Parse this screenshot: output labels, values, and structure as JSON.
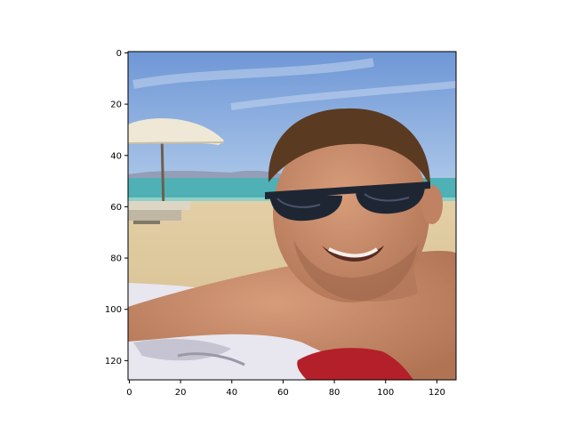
{
  "chart_data": {
    "type": "image",
    "image_extent": {
      "x": [
        -0.5,
        127.5
      ],
      "y": [
        127.5,
        -0.5
      ]
    },
    "x_axis": {
      "ticks": [
        0,
        20,
        40,
        60,
        80,
        100,
        120
      ],
      "labels": [
        "0",
        "20",
        "40",
        "60",
        "80",
        "100",
        "120"
      ]
    },
    "y_axis": {
      "ticks": [
        0,
        20,
        40,
        60,
        80,
        100,
        120
      ],
      "labels": [
        "0",
        "20",
        "40",
        "60",
        "80",
        "100",
        "120"
      ],
      "inverted": true
    },
    "grid": false,
    "title": "",
    "xlabel": "",
    "ylabel": "",
    "scene": {
      "sky_top": "#6f97d6",
      "sky_bottom": "#a9c5e8",
      "sea": "#4fb1b5",
      "sand": "#d9c49a",
      "skin": "#c58b6a",
      "hair": "#5b3a22",
      "sunglasses": "#1f2633",
      "towel": "#e8e6ef",
      "red_cloth": "#b3202a",
      "umbrella": "#efe8d6"
    }
  }
}
